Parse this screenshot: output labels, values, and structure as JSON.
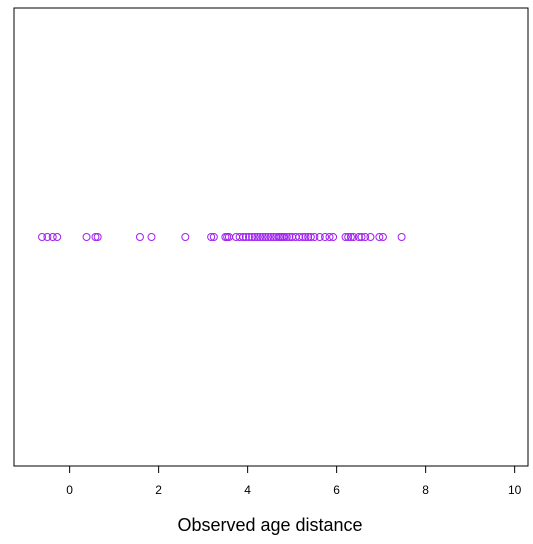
{
  "chart_data": {
    "type": "scatter",
    "title": "",
    "xlabel": "Observed age distance",
    "ylabel": "",
    "xlim": [
      -1.25,
      10.3
    ],
    "x_ticks": [
      0,
      2,
      4,
      6,
      8,
      10
    ],
    "x_tick_labels": [
      "0",
      "2",
      "4",
      "6",
      "8",
      "10"
    ],
    "y_axis_shown": false,
    "grid": false,
    "legend": "none",
    "marker": "open-circle",
    "marker_color": "#a020f0",
    "series": [
      {
        "x": [
          -0.62,
          -0.5,
          -0.38,
          -0.28,
          0.38,
          0.58,
          0.63,
          1.58,
          1.84,
          2.6,
          3.18,
          3.24,
          3.5,
          3.54,
          3.58,
          3.74,
          3.82,
          3.9,
          3.96,
          4.03,
          4.1,
          4.16,
          4.22,
          4.28,
          4.34,
          4.4,
          4.46,
          4.52,
          4.58,
          4.64,
          4.7,
          4.74,
          4.78,
          4.82,
          4.88,
          4.94,
          5.0,
          5.08,
          5.16,
          5.24,
          5.3,
          5.36,
          5.42,
          5.5,
          5.62,
          5.74,
          5.84,
          5.92,
          6.2,
          6.26,
          6.32,
          6.38,
          6.5,
          6.56,
          6.64,
          6.76,
          6.96,
          7.04,
          7.46
        ],
        "y": [
          0,
          0,
          0,
          0,
          0,
          0,
          0,
          0,
          0,
          0,
          0,
          0,
          0,
          0,
          0,
          0,
          0,
          0,
          0,
          0,
          0,
          0,
          0,
          0,
          0,
          0,
          0,
          0,
          0,
          0,
          0,
          0,
          0,
          0,
          0,
          0,
          0,
          0,
          0,
          0,
          0,
          0,
          0,
          0,
          0,
          0,
          0,
          0,
          0,
          0,
          0,
          0,
          0,
          0,
          0,
          0,
          0,
          0,
          0
        ]
      }
    ]
  }
}
